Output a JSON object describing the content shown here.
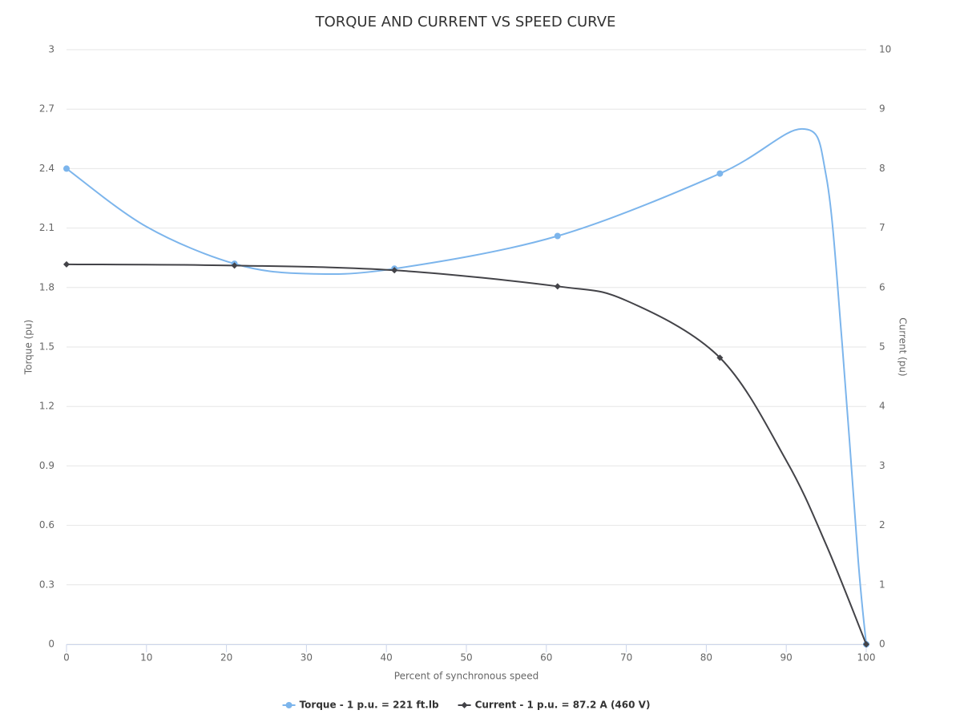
{
  "chart_data": {
    "type": "line",
    "title": "TORQUE AND CURRENT VS SPEED CURVE",
    "x_label": "Percent of synchronous speed",
    "y_label": "Torque (pu)",
    "y2_label": "Current (pu)",
    "xlim": [
      0,
      100
    ],
    "xticks": [
      0,
      10,
      20,
      30,
      40,
      50,
      60,
      70,
      80,
      90,
      100
    ],
    "ylim": [
      0,
      3
    ],
    "yticks": [
      0,
      0.3,
      0.6,
      0.9,
      1.2,
      1.5,
      1.8,
      2.1,
      2.4,
      2.7,
      3
    ],
    "y2lim": [
      0,
      10
    ],
    "y2ticks": [
      0,
      1,
      2,
      3,
      4,
      5,
      6,
      7,
      8,
      9,
      10
    ],
    "grid": true,
    "legend": "bottom",
    "series": [
      {
        "name": "Torque - 1 p.u. = 221 ft.lb",
        "color": "#7cb5ec",
        "axis": "y",
        "x": [
          0,
          21,
          41,
          61.4,
          81.7,
          100
        ],
        "values": [
          2.4,
          1.92,
          1.895,
          2.06,
          2.375,
          0
        ]
      },
      {
        "name": "Current - 1 p.u. = 87.2 A (460 V)",
        "color": "#434348",
        "axis": "y2",
        "x": [
          0,
          21,
          41,
          61.4,
          81.7,
          100
        ],
        "values": [
          6.39,
          6.37,
          6.29,
          6.02,
          4.82,
          0
        ]
      }
    ],
    "curve_series": [
      {
        "x": [
          0,
          10,
          21,
          30,
          41,
          61.4,
          81.7,
          92,
          95,
          97,
          99,
          100
        ],
        "values": [
          2.4,
          2.107,
          1.92,
          1.87,
          1.895,
          2.06,
          2.375,
          2.6,
          2.36,
          1.51,
          0.42,
          0
        ]
      },
      {
        "x": [
          0,
          21,
          41,
          61.4,
          70,
          81.7,
          90,
          95,
          100
        ],
        "values": [
          6.39,
          6.37,
          6.29,
          6.02,
          5.78,
          4.82,
          3.09,
          1.67,
          0
        ]
      }
    ]
  }
}
